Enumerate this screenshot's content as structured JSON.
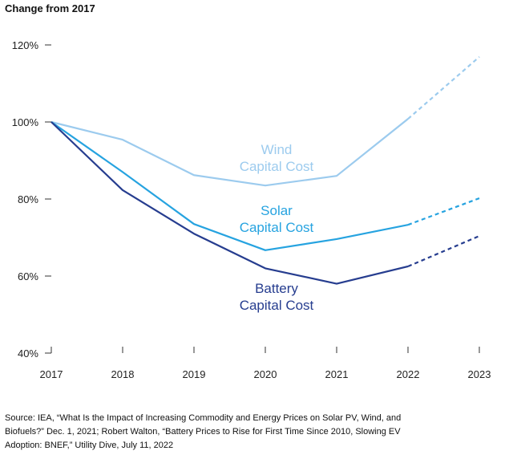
{
  "chart_data": {
    "type": "line",
    "title": "Change from 2017",
    "xlabel": "",
    "ylabel": "",
    "x": [
      "2017",
      "2018",
      "2019",
      "2020",
      "2021",
      "2022",
      "2023"
    ],
    "ylim": [
      40,
      120
    ],
    "yticks": [
      "40%",
      "60%",
      "80%",
      "100%",
      "120%"
    ],
    "ytick_values": [
      40,
      60,
      80,
      100,
      120
    ],
    "grid": false,
    "projected_from": "2022",
    "series": [
      {
        "name": "Wind Capital Cost",
        "label_line1": "Wind",
        "label_line2": "Capital Cost",
        "color": "#9ccbee",
        "values": [
          100,
          95.4,
          86.2,
          83.5,
          86,
          100.8,
          116.9
        ]
      },
      {
        "name": "Solar Capital Cost",
        "label_line1": "Solar",
        "label_line2": "Capital Cost",
        "color": "#26a3e0",
        "values": [
          100,
          87,
          73.5,
          66.7,
          69.6,
          73.3,
          80.2
        ]
      },
      {
        "name": "Battery Capital Cost",
        "label_line1": "Battery",
        "label_line2": "Capital Cost",
        "color": "#263d8f",
        "values": [
          100,
          82.3,
          71,
          62,
          58,
          62.5,
          70.4
        ]
      }
    ]
  },
  "source": "Source: IEA, “What Is the Impact of Increasing Commodity and Energy Prices on Solar PV, Wind, and Biofuels?” Dec. 1, 2021; Robert Walton, “Battery Prices to Rise for First Time Since 2010, Slowing EV Adoption: BNEF,” Utility Dive, July 11, 2022"
}
